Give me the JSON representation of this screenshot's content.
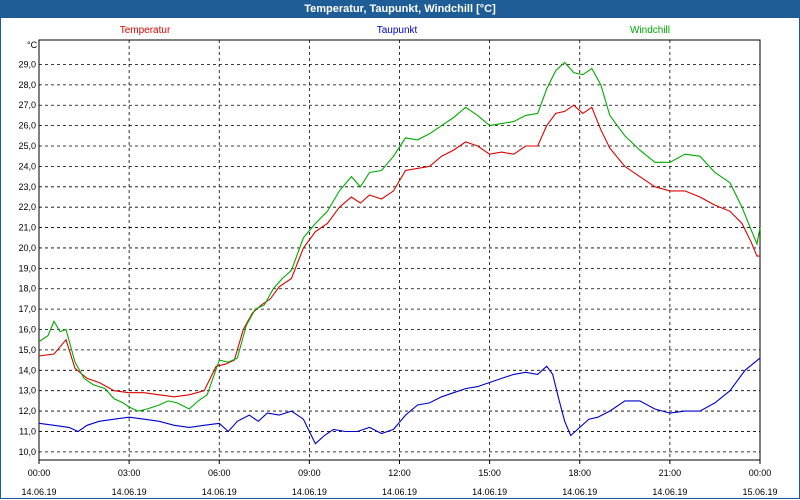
{
  "window": {
    "title": "Temperatur, Taupunkt, Windchill [°C]"
  },
  "chart_data": {
    "type": "line",
    "title": "Temperatur, Taupunkt, Windchill [°C]",
    "ylabel": "°C",
    "ylim": [
      9.6,
      30.2
    ],
    "xlim": [
      0,
      24
    ],
    "grid": true,
    "y_ticks": [
      "10,0",
      "11,0",
      "12,0",
      "13,0",
      "14,0",
      "15,0",
      "16,0",
      "17,0",
      "18,0",
      "19,0",
      "20,0",
      "21,0",
      "22,0",
      "23,0",
      "24,0",
      "25,0",
      "26,0",
      "27,0",
      "28,0",
      "29,0"
    ],
    "x_ticks": [
      {
        "time": "00:00",
        "date": "14.06.19"
      },
      {
        "time": "03:00",
        "date": "14.06.19"
      },
      {
        "time": "06:00",
        "date": "14.06.19"
      },
      {
        "time": "09:00",
        "date": "14.06.19"
      },
      {
        "time": "12:00",
        "date": "14.06.19"
      },
      {
        "time": "15:00",
        "date": "14.06.19"
      },
      {
        "time": "18:00",
        "date": "14.06.19"
      },
      {
        "time": "21:00",
        "date": "14.06.19"
      },
      {
        "time": "00:00",
        "date": "15.06.19"
      }
    ],
    "series": [
      {
        "name": "Temperatur",
        "color": "#dd0000",
        "points": [
          [
            0,
            14.7
          ],
          [
            0.5,
            14.8
          ],
          [
            0.9,
            15.5
          ],
          [
            1.2,
            14.1
          ],
          [
            1.6,
            13.6
          ],
          [
            2.0,
            13.4
          ],
          [
            2.5,
            13.0
          ],
          [
            3.0,
            12.9
          ],
          [
            3.5,
            12.9
          ],
          [
            4.0,
            12.8
          ],
          [
            4.5,
            12.7
          ],
          [
            5.0,
            12.8
          ],
          [
            5.5,
            13.0
          ],
          [
            5.9,
            14.2
          ],
          [
            6.2,
            14.3
          ],
          [
            6.5,
            14.5
          ],
          [
            6.8,
            16.0
          ],
          [
            7.1,
            16.8
          ],
          [
            7.4,
            17.2
          ],
          [
            7.7,
            17.5
          ],
          [
            8.0,
            18.1
          ],
          [
            8.4,
            18.5
          ],
          [
            8.8,
            20.0
          ],
          [
            9.2,
            20.8
          ],
          [
            9.6,
            21.2
          ],
          [
            10.0,
            22.0
          ],
          [
            10.4,
            22.5
          ],
          [
            10.7,
            22.2
          ],
          [
            11.0,
            22.6
          ],
          [
            11.4,
            22.4
          ],
          [
            11.8,
            22.8
          ],
          [
            12.2,
            23.8
          ],
          [
            12.6,
            23.9
          ],
          [
            13.0,
            24.0
          ],
          [
            13.4,
            24.5
          ],
          [
            13.8,
            24.8
          ],
          [
            14.2,
            25.2
          ],
          [
            14.6,
            25.0
          ],
          [
            15.0,
            24.6
          ],
          [
            15.4,
            24.7
          ],
          [
            15.8,
            24.6
          ],
          [
            16.2,
            25.0
          ],
          [
            16.6,
            25.0
          ],
          [
            16.9,
            26.0
          ],
          [
            17.2,
            26.6
          ],
          [
            17.5,
            26.7
          ],
          [
            17.8,
            27.0
          ],
          [
            18.1,
            26.6
          ],
          [
            18.4,
            26.9
          ],
          [
            18.7,
            25.8
          ],
          [
            19.0,
            24.9
          ],
          [
            19.5,
            24.0
          ],
          [
            20.0,
            23.5
          ],
          [
            20.5,
            23.0
          ],
          [
            21.0,
            22.8
          ],
          [
            21.5,
            22.8
          ],
          [
            22.0,
            22.5
          ],
          [
            22.5,
            22.1
          ],
          [
            23.0,
            21.8
          ],
          [
            23.4,
            21.2
          ],
          [
            23.7,
            20.3
          ],
          [
            23.9,
            19.6
          ],
          [
            24.0,
            19.6
          ]
        ]
      },
      {
        "name": "Taupunkt",
        "color": "#0000cc",
        "points": [
          [
            0,
            11.4
          ],
          [
            0.5,
            11.3
          ],
          [
            1.0,
            11.2
          ],
          [
            1.3,
            11.0
          ],
          [
            1.6,
            11.3
          ],
          [
            2.0,
            11.5
          ],
          [
            2.5,
            11.6
          ],
          [
            3.0,
            11.7
          ],
          [
            3.5,
            11.6
          ],
          [
            4.0,
            11.5
          ],
          [
            4.5,
            11.3
          ],
          [
            5.0,
            11.2
          ],
          [
            5.5,
            11.3
          ],
          [
            6.0,
            11.4
          ],
          [
            6.3,
            11.0
          ],
          [
            6.6,
            11.5
          ],
          [
            7.0,
            11.8
          ],
          [
            7.3,
            11.5
          ],
          [
            7.6,
            11.9
          ],
          [
            8.0,
            11.8
          ],
          [
            8.4,
            12.0
          ],
          [
            8.8,
            11.6
          ],
          [
            9.0,
            11.0
          ],
          [
            9.2,
            10.4
          ],
          [
            9.5,
            10.8
          ],
          [
            9.8,
            11.1
          ],
          [
            10.2,
            11.0
          ],
          [
            10.6,
            11.0
          ],
          [
            11.0,
            11.2
          ],
          [
            11.4,
            10.9
          ],
          [
            11.8,
            11.1
          ],
          [
            12.2,
            11.8
          ],
          [
            12.6,
            12.3
          ],
          [
            13.0,
            12.4
          ],
          [
            13.4,
            12.7
          ],
          [
            13.8,
            12.9
          ],
          [
            14.2,
            13.1
          ],
          [
            14.6,
            13.2
          ],
          [
            15.0,
            13.4
          ],
          [
            15.4,
            13.6
          ],
          [
            15.8,
            13.8
          ],
          [
            16.2,
            13.9
          ],
          [
            16.6,
            13.8
          ],
          [
            16.9,
            14.2
          ],
          [
            17.1,
            13.8
          ],
          [
            17.3,
            12.6
          ],
          [
            17.5,
            11.5
          ],
          [
            17.7,
            10.8
          ],
          [
            18.0,
            11.2
          ],
          [
            18.3,
            11.6
          ],
          [
            18.6,
            11.7
          ],
          [
            19.0,
            12.0
          ],
          [
            19.5,
            12.5
          ],
          [
            20.0,
            12.5
          ],
          [
            20.5,
            12.1
          ],
          [
            21.0,
            11.9
          ],
          [
            21.5,
            12.0
          ],
          [
            22.0,
            12.0
          ],
          [
            22.5,
            12.4
          ],
          [
            23.0,
            13.0
          ],
          [
            23.5,
            14.0
          ],
          [
            24.0,
            14.6
          ]
        ]
      },
      {
        "name": "Windchill",
        "color": "#00aa00",
        "points": [
          [
            0,
            15.4
          ],
          [
            0.3,
            15.7
          ],
          [
            0.5,
            16.4
          ],
          [
            0.7,
            15.9
          ],
          [
            0.9,
            16.0
          ],
          [
            1.2,
            14.4
          ],
          [
            1.5,
            13.6
          ],
          [
            1.8,
            13.3
          ],
          [
            2.2,
            13.1
          ],
          [
            2.5,
            12.6
          ],
          [
            2.8,
            12.4
          ],
          [
            3.0,
            12.2
          ],
          [
            3.3,
            12.0
          ],
          [
            3.6,
            12.1
          ],
          [
            4.0,
            12.3
          ],
          [
            4.3,
            12.5
          ],
          [
            4.6,
            12.4
          ],
          [
            5.0,
            12.1
          ],
          [
            5.3,
            12.5
          ],
          [
            5.6,
            12.8
          ],
          [
            6.0,
            14.5
          ],
          [
            6.3,
            14.4
          ],
          [
            6.6,
            14.6
          ],
          [
            6.9,
            16.2
          ],
          [
            7.2,
            17.0
          ],
          [
            7.5,
            17.2
          ],
          [
            7.8,
            18.0
          ],
          [
            8.1,
            18.5
          ],
          [
            8.4,
            18.9
          ],
          [
            8.8,
            20.5
          ],
          [
            9.2,
            21.2
          ],
          [
            9.6,
            21.8
          ],
          [
            10.0,
            22.8
          ],
          [
            10.4,
            23.5
          ],
          [
            10.7,
            23.0
          ],
          [
            11.0,
            23.7
          ],
          [
            11.4,
            23.8
          ],
          [
            11.8,
            24.5
          ],
          [
            12.2,
            25.4
          ],
          [
            12.6,
            25.3
          ],
          [
            13.0,
            25.6
          ],
          [
            13.4,
            26.0
          ],
          [
            13.8,
            26.4
          ],
          [
            14.2,
            26.9
          ],
          [
            14.6,
            26.5
          ],
          [
            15.0,
            26.0
          ],
          [
            15.4,
            26.1
          ],
          [
            15.8,
            26.2
          ],
          [
            16.2,
            26.5
          ],
          [
            16.6,
            26.6
          ],
          [
            16.9,
            27.8
          ],
          [
            17.2,
            28.7
          ],
          [
            17.5,
            29.1
          ],
          [
            17.8,
            28.6
          ],
          [
            18.1,
            28.5
          ],
          [
            18.4,
            28.8
          ],
          [
            18.7,
            28.0
          ],
          [
            19.0,
            26.5
          ],
          [
            19.5,
            25.5
          ],
          [
            20.0,
            24.8
          ],
          [
            20.5,
            24.2
          ],
          [
            21.0,
            24.2
          ],
          [
            21.5,
            24.6
          ],
          [
            22.0,
            24.5
          ],
          [
            22.5,
            23.7
          ],
          [
            23.0,
            23.2
          ],
          [
            23.4,
            22.0
          ],
          [
            23.7,
            20.9
          ],
          [
            23.9,
            20.2
          ],
          [
            24.0,
            21.0
          ]
        ]
      }
    ]
  }
}
